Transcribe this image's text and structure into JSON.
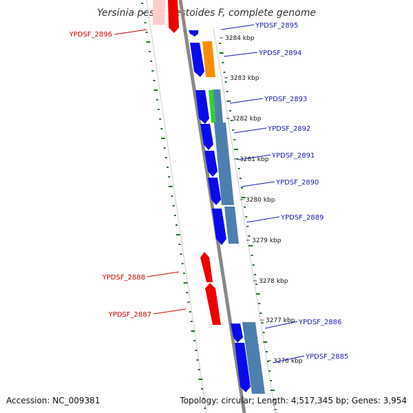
{
  "title": "Yersinia pestis Pestoides F, complete genome",
  "footer": {
    "accession": "Accession: NC_009381",
    "topology": "Topology: circular; Length: 4,517,345 bp; Genes: 3,954"
  },
  "kbp_labels": [
    "3284 kbp",
    "3283 kbp",
    "3282 kbp",
    "3281 kbp",
    "3280 kbp",
    "3279 kbp",
    "3278 kbp",
    "3277 kbp",
    "3276 kbp"
  ],
  "forward_genes": [
    {
      "label": "YPDSF_2895",
      "color": "#0a0aee"
    },
    {
      "label": "YPDSF_2894",
      "color": "#0a0aee",
      "rna_color": "#ff8c00"
    },
    {
      "label": "YPDSF_2893",
      "color": "#0a0aee",
      "rna_color": "#33cc33"
    },
    {
      "label": "YPDSF_2892",
      "color": "#0a0aee"
    },
    {
      "label": "YPDSF_2891",
      "color": "#0a0aee"
    },
    {
      "label": "YPDSF_2890",
      "color": "#0a0aee"
    },
    {
      "label": "YPDSF_2889",
      "color": "#0a0aee"
    },
    {
      "label": "YPDSF_2886",
      "color": "#0a0aee"
    },
    {
      "label": "YPDSF_2885",
      "color": "#0a0aee"
    }
  ],
  "reverse_genes": [
    {
      "label": "YPDSF_2896",
      "color": "#ee0000"
    },
    {
      "label": "YPDSF_2888",
      "color": "#ee0000"
    },
    {
      "label": "YPDSF_2887",
      "color": "#ee0000"
    }
  ],
  "colors": {
    "backbone": "#888888",
    "gc_ticks": "#1a7a1a",
    "cds_block": "#4d7fae",
    "forward_label": "#1a1ab8",
    "reverse_label": "#cc0000"
  }
}
